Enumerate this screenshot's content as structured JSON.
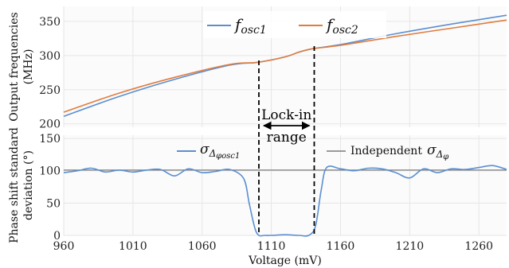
{
  "chart_data": [
    {
      "type": "line",
      "ylabel_line1": "Output frequencies",
      "ylabel_line2": "(MHz)",
      "xlim": [
        960,
        1280
      ],
      "ylim": [
        195,
        372
      ],
      "yticks": [
        "200",
        "250",
        "300",
        "350"
      ],
      "grid": true,
      "legend_position": "top-center",
      "series": [
        {
          "name_main": "f",
          "name_sub": "osc1",
          "color": "#5b8fd0",
          "x": [
            960,
            1000,
            1040,
            1080,
            1100,
            1120,
            1130,
            1140,
            1160,
            1200,
            1240,
            1280
          ],
          "y": [
            211,
            240,
            265,
            286,
            290,
            298,
            305,
            310,
            316,
            332,
            346,
            359
          ]
        },
        {
          "name_main": "f",
          "name_sub": "osc2",
          "color": "#e07c3e",
          "x": [
            960,
            1000,
            1040,
            1080,
            1100,
            1120,
            1130,
            1140,
            1160,
            1200,
            1240,
            1280
          ],
          "y": [
            217,
            245,
            268,
            287,
            290,
            298,
            305,
            310,
            315,
            328,
            340,
            352
          ]
        }
      ]
    },
    {
      "type": "line",
      "ylabel_line1": "Phase shift standard",
      "ylabel_line2": "deviation (°)",
      "xlabel": "Voltage (mV)",
      "xlim": [
        960,
        1280
      ],
      "ylim": [
        0,
        155
      ],
      "xticks": [
        "960",
        "1010",
        "1060",
        "1110",
        "1160",
        "1210",
        "1260"
      ],
      "yticks": [
        "0",
        "50",
        "100",
        "150"
      ],
      "grid": true,
      "series": [
        {
          "legend_main": "σ",
          "legend_sub": "Δ",
          "legend_subsub": "φosc1",
          "color": "#5b8fd0",
          "x": [
            960,
            970,
            980,
            990,
            1000,
            1010,
            1020,
            1030,
            1040,
            1050,
            1060,
            1070,
            1080,
            1090,
            1094,
            1098,
            1101,
            1105,
            1110,
            1120,
            1130,
            1137,
            1142,
            1146,
            1150,
            1160,
            1170,
            1180,
            1190,
            1200,
            1210,
            1220,
            1230,
            1240,
            1250,
            1260,
            1270,
            1280
          ],
          "y": [
            97,
            100,
            104,
            98,
            101,
            98,
            101,
            102,
            92,
            103,
            97,
            99,
            102,
            88,
            50,
            12,
            0,
            0,
            0,
            1,
            0,
            0,
            15,
            70,
            105,
            103,
            100,
            104,
            103,
            97,
            89,
            103,
            97,
            103,
            102,
            105,
            108,
            102
          ]
        },
        {
          "legend_prefix": "Independent",
          "legend_main": "σ",
          "legend_sub": "Δ",
          "legend_subsub": "φ",
          "color": "#7a7a7a",
          "x": [
            960,
            1280
          ],
          "y": [
            101,
            101
          ]
        }
      ]
    }
  ],
  "annotation": {
    "line1": "Lock-in",
    "line2": "range",
    "x_start": 1101,
    "x_end": 1141
  }
}
